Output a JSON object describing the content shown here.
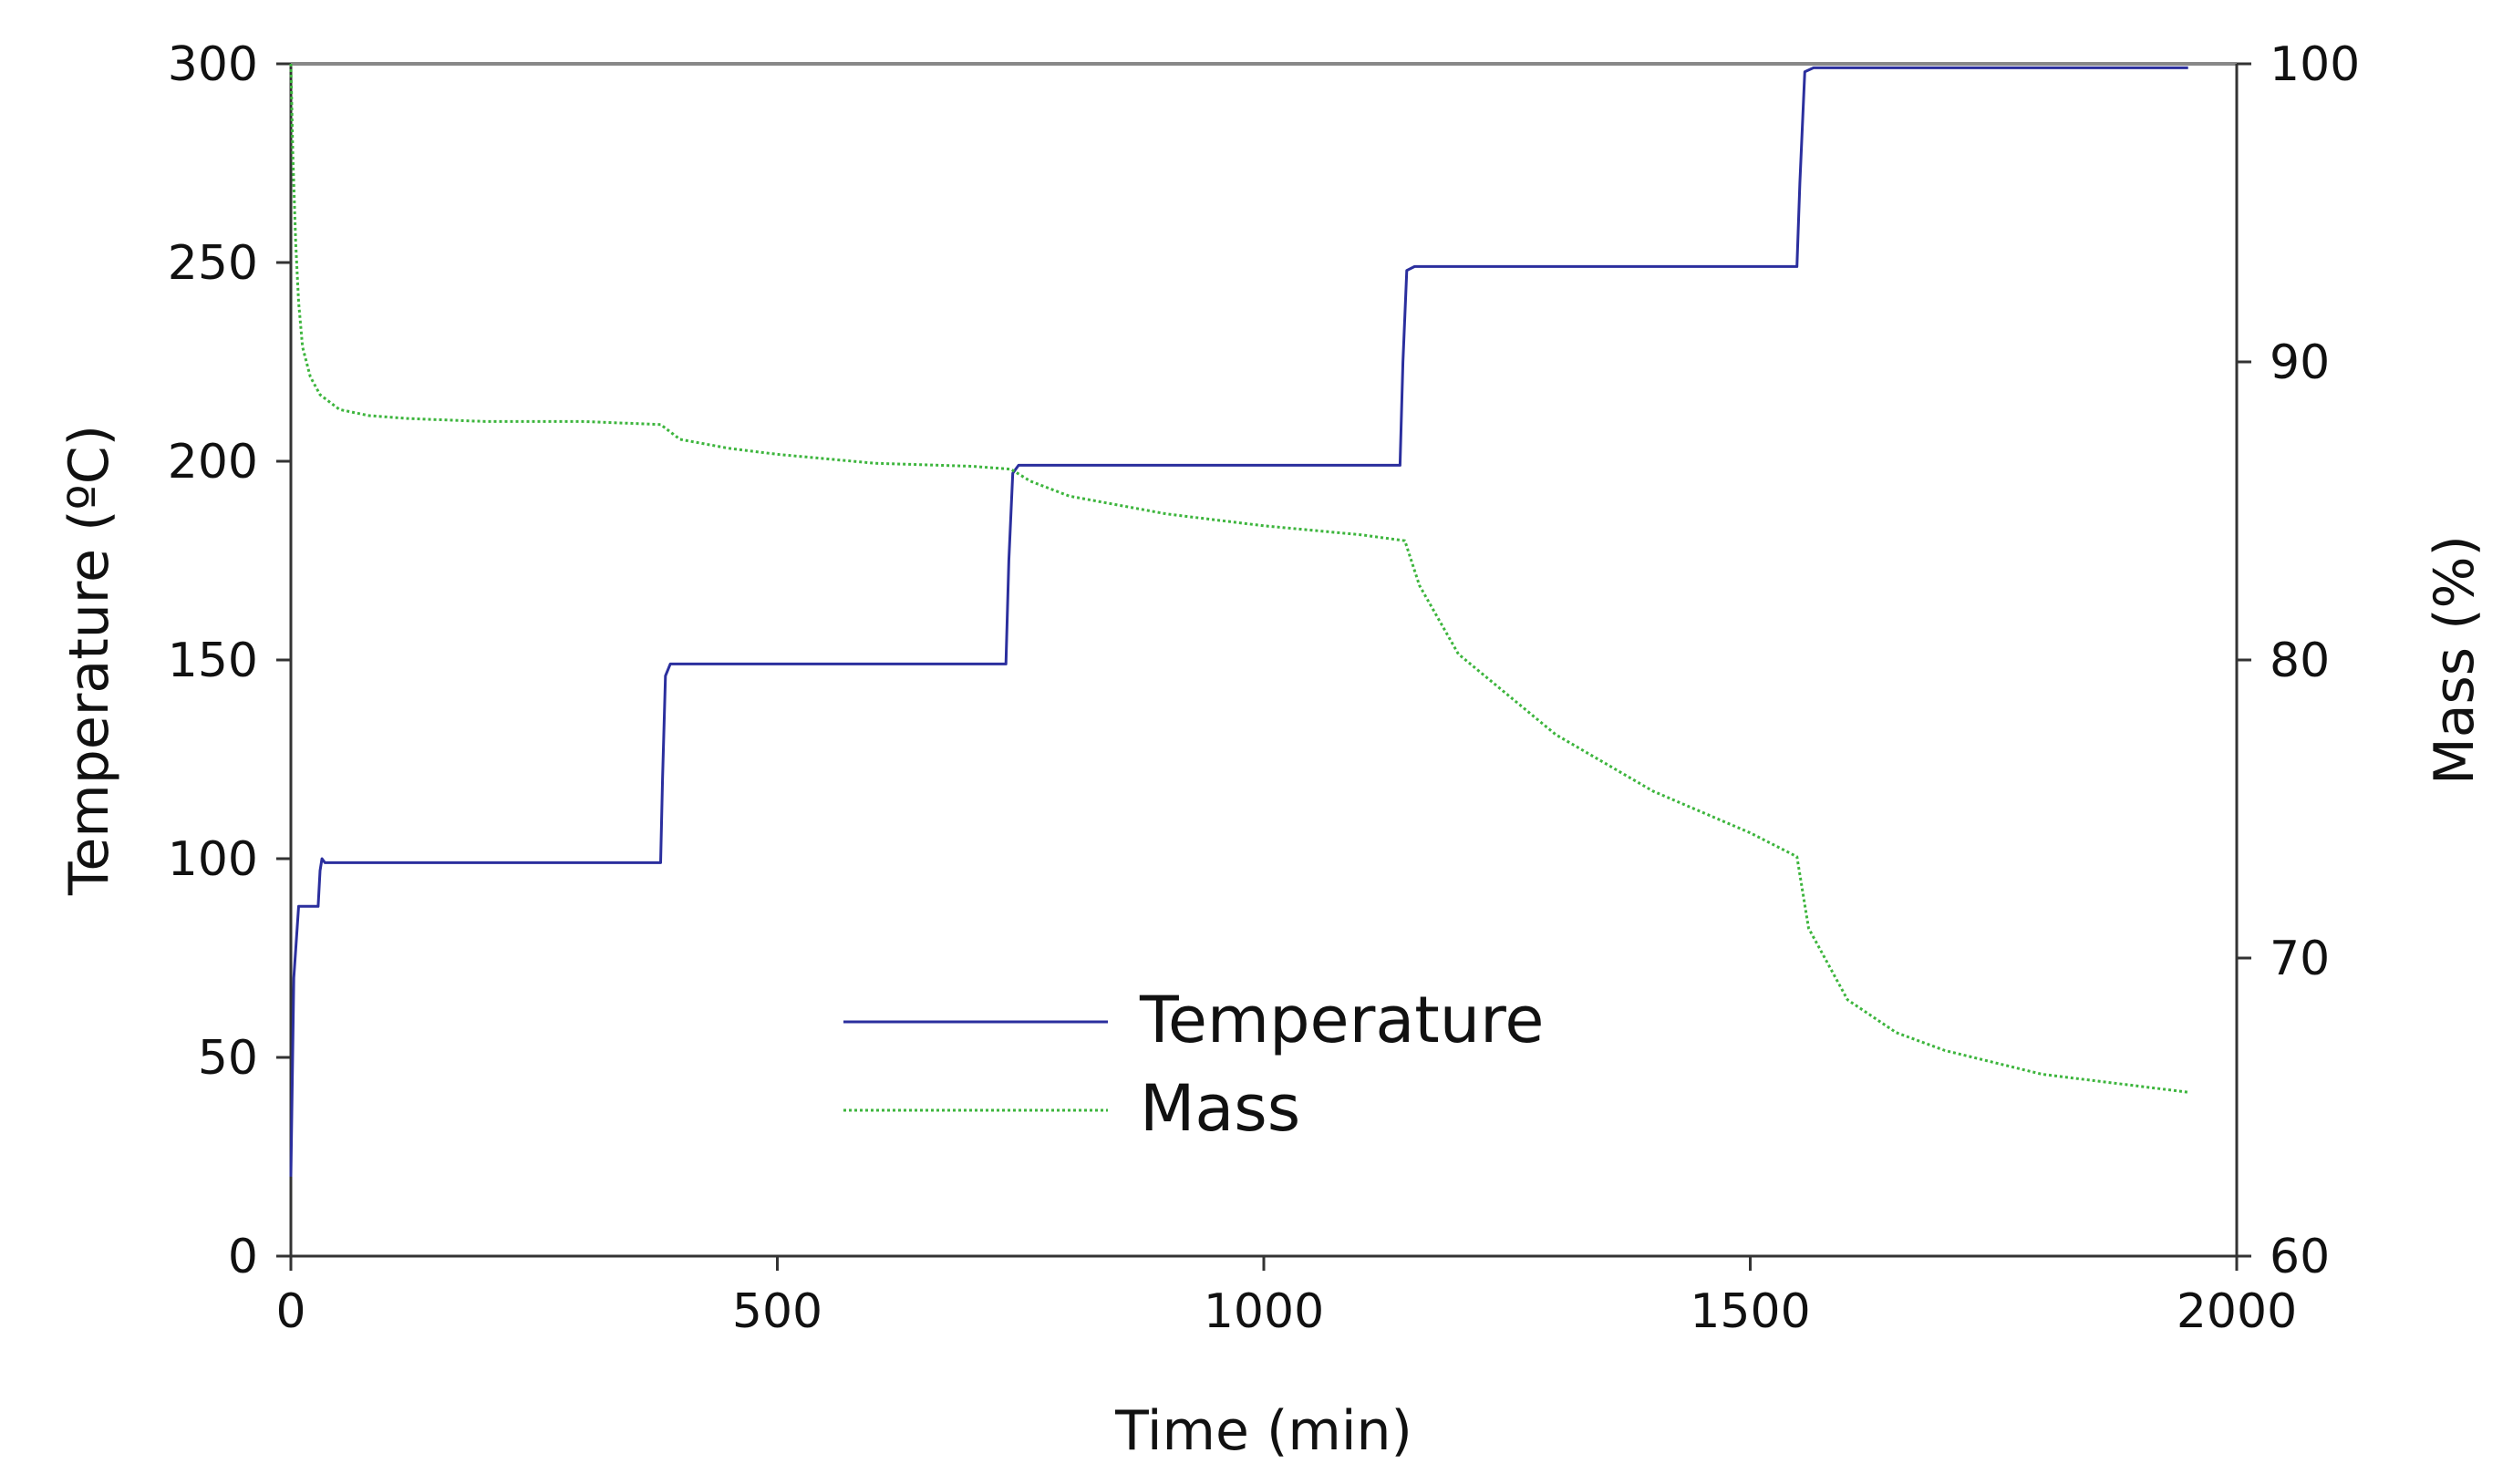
{
  "chart_data": {
    "type": "line",
    "title": "",
    "xlabel": "Time (min)",
    "ylabel_left": "Temperature (ºC)",
    "ylabel_right": "Mass (%)",
    "xlim": [
      0,
      2000
    ],
    "ylim_left": [
      0,
      300
    ],
    "ylim_right": [
      60,
      100
    ],
    "x_ticks": [
      0,
      500,
      1000,
      1500,
      2000
    ],
    "y_left_ticks": [
      0,
      50,
      100,
      150,
      200,
      250,
      300
    ],
    "y_right_ticks": [
      60,
      70,
      80,
      90,
      100
    ],
    "grid": false,
    "legend_position": "center-bottom",
    "series": [
      {
        "name": "Temperature",
        "axis": "left",
        "color": "#2b2f9e",
        "style": "solid",
        "x": [
          0,
          3,
          8,
          15,
          28,
          30,
          32,
          35,
          60,
          200,
          380,
          382,
          385,
          390,
          420,
          500,
          600,
          690,
          735,
          738,
          742,
          748,
          800,
          1000,
          1140,
          1143,
          1147,
          1155,
          1300,
          1548,
          1551,
          1556,
          1565,
          1700,
          1950
        ],
        "values": [
          20,
          70,
          88,
          88,
          88,
          97,
          100,
          99,
          99,
          99,
          99,
          120,
          146,
          149,
          149,
          149,
          149,
          149,
          149,
          175,
          197,
          199,
          199,
          199,
          199,
          225,
          248,
          249,
          249,
          249,
          270,
          298,
          299,
          299,
          299
        ]
      },
      {
        "name": "Mass",
        "axis": "right",
        "color": "#3db53d",
        "style": "dotted",
        "x": [
          0,
          2,
          5,
          8,
          12,
          20,
          30,
          50,
          80,
          120,
          200,
          300,
          380,
          400,
          450,
          500,
          600,
          700,
          740,
          760,
          800,
          900,
          1000,
          1100,
          1145,
          1160,
          1200,
          1300,
          1400,
          1500,
          1548,
          1560,
          1600,
          1650,
          1700,
          1800,
          1950
        ],
        "values": [
          100,
          97,
          94,
          92,
          90.5,
          89.5,
          88.9,
          88.4,
          88.2,
          88.1,
          88.0,
          88.0,
          87.9,
          87.4,
          87.1,
          86.9,
          86.6,
          86.5,
          86.4,
          86.0,
          85.5,
          84.9,
          84.5,
          84.2,
          84.0,
          82.5,
          80.2,
          77.5,
          75.6,
          74.2,
          73.4,
          71.0,
          68.6,
          67.5,
          66.9,
          66.1,
          65.5
        ]
      }
    ]
  }
}
